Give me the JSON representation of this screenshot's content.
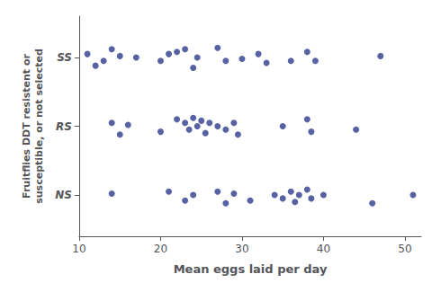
{
  "chart_data": {
    "type": "scatter",
    "xlabel": "Mean eggs laid per day",
    "ylabel": "Fruitflies DDT resistent or\nsusceptible, or not selected",
    "color": "#2e3a8c",
    "grid": false,
    "xlim": [
      10,
      52
    ],
    "ylim": [
      0.4,
      3.6
    ],
    "xticks": [
      10,
      20,
      30,
      40,
      50
    ],
    "yticks": [
      {
        "value": 1,
        "label": "NS"
      },
      {
        "value": 2,
        "label": "RS"
      },
      {
        "value": 3,
        "label": "SS"
      }
    ],
    "series": [
      {
        "x": [
          11,
          12,
          13,
          14,
          15,
          17,
          20,
          21,
          22,
          23,
          24,
          24.5,
          27,
          28,
          30,
          32,
          33,
          36,
          38,
          39,
          47
        ],
        "values": [
          3.05,
          2.88,
          2.95,
          3.12,
          3.02,
          3.0,
          2.95,
          3.05,
          3.08,
          3.12,
          2.85,
          3.0,
          3.14,
          2.95,
          2.98,
          3.05,
          2.92,
          2.95,
          3.08,
          2.95,
          3.02
        ]
      },
      {
        "x": [
          14,
          15,
          16,
          20,
          22,
          23,
          23.5,
          24,
          24.5,
          25,
          25.5,
          26,
          27,
          28,
          29,
          29.5,
          35,
          38,
          38.5,
          44
        ],
        "values": [
          2.05,
          1.88,
          2.02,
          1.92,
          2.1,
          2.05,
          1.95,
          2.12,
          2.0,
          2.08,
          1.9,
          2.05,
          2.0,
          1.95,
          2.05,
          1.88,
          2.0,
          2.1,
          1.92,
          1.95
        ]
      },
      {
        "x": [
          14,
          21,
          23,
          24,
          27,
          28,
          29,
          31,
          34,
          35,
          36,
          36.5,
          37,
          38,
          38.5,
          40,
          46,
          51
        ],
        "values": [
          1.02,
          1.05,
          0.92,
          1.0,
          1.05,
          0.88,
          1.02,
          0.92,
          1.0,
          0.95,
          1.05,
          0.9,
          1.0,
          1.08,
          0.95,
          1.0,
          0.88,
          1.0
        ]
      }
    ]
  }
}
